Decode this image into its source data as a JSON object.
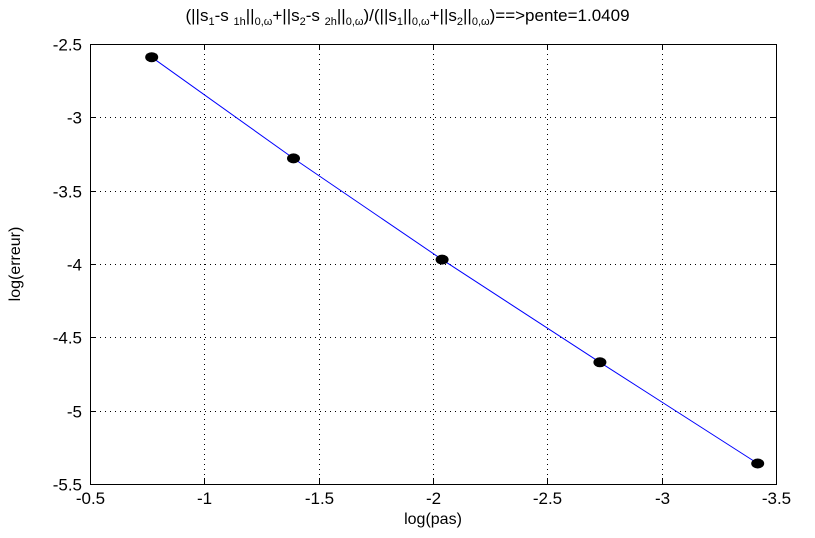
{
  "chart_data": {
    "type": "line",
    "title": {
      "segments": [
        {
          "t": "(||s"
        },
        {
          "s": "1"
        },
        {
          "t": "-s "
        },
        {
          "s": "1h"
        },
        {
          "t": "||"
        },
        {
          "s": "0,ω"
        },
        {
          "t": "+||s"
        },
        {
          "s": "2"
        },
        {
          "t": "-s "
        },
        {
          "s": "2h"
        },
        {
          "t": "||"
        },
        {
          "s": "0,ω"
        },
        {
          "t": ")/(||s"
        },
        {
          "s": "1"
        },
        {
          "t": "||"
        },
        {
          "s": "0,ω"
        },
        {
          "t": "+||s"
        },
        {
          "s": "2"
        },
        {
          "t": "||"
        },
        {
          "s": "0,ω"
        },
        {
          "t": ")==>pente=1.0409"
        }
      ]
    },
    "xlabel": "log(pas)",
    "ylabel": "log(erreur)",
    "xlim": [
      -0.5,
      -3.5
    ],
    "ylim": [
      -5.5,
      -2.5
    ],
    "xticks": [
      -0.5,
      -1,
      -1.5,
      -2,
      -2.5,
      -3,
      -3.5
    ],
    "xtick_labels": [
      "-0.5",
      "-1",
      "-1.5",
      "-2",
      "-2.5",
      "-3",
      "-3.5"
    ],
    "yticks": [
      -2.5,
      -3,
      -3.5,
      -4,
      -4.5,
      -5,
      -5.5
    ],
    "ytick_labels": [
      "-2.5",
      "-3",
      "-3.5",
      "-4",
      "-4.5",
      "-5",
      "-5.5"
    ],
    "grid": true,
    "grid_style": "dotted",
    "series": [
      {
        "x": [
          -0.77,
          -1.39,
          -2.04,
          -2.73,
          -3.42
        ],
        "y": [
          -2.59,
          -3.28,
          -3.97,
          -4.67,
          -5.36
        ],
        "line_color": "#0000ff",
        "marker_color": "#000000",
        "marker": "filled-circle"
      }
    ]
  }
}
